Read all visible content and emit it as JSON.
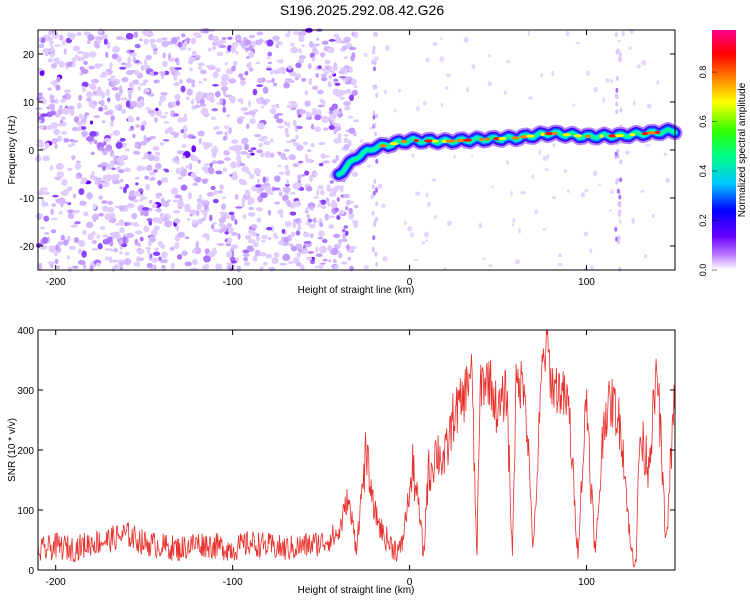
{
  "title": "S196.2025.292.08.42.G26",
  "chart_data": [
    {
      "type": "heatmap",
      "xlabel": "Height of straight line (km)",
      "ylabel": "Frequency (Hz)",
      "xlim": [
        -210,
        150
      ],
      "ylim": [
        -25,
        25
      ],
      "xticks": [
        -200,
        -100,
        0,
        100
      ],
      "yticks": [
        -20,
        -10,
        0,
        10,
        20
      ],
      "ridge": [
        {
          "x": -40,
          "y": -5
        },
        {
          "x": -30,
          "y": -1.5
        },
        {
          "x": -20,
          "y": 0.5
        },
        {
          "x": 0,
          "y": 2
        },
        {
          "x": 20,
          "y": 1.8
        },
        {
          "x": 40,
          "y": 2.2
        },
        {
          "x": 60,
          "y": 2.5
        },
        {
          "x": 80,
          "y": 3.5
        },
        {
          "x": 100,
          "y": 2.8
        },
        {
          "x": 120,
          "y": 3.0
        },
        {
          "x": 150,
          "y": 4.0
        }
      ],
      "colorbar": {
        "label": "Normalized spectral amplitude",
        "ticks": [
          0.0,
          0.2,
          0.4,
          0.6,
          0.8
        ],
        "range": [
          0,
          0.97
        ]
      }
    },
    {
      "type": "line",
      "xlabel": "Height of straight line (km)",
      "ylabel": "SNR (10 * v/v)",
      "xlim": [
        -210,
        150
      ],
      "ylim": [
        0,
        400
      ],
      "xticks": [
        -200,
        -100,
        0,
        100
      ],
      "yticks": [
        0,
        100,
        200,
        300,
        400
      ],
      "series": [
        {
          "name": "SNR",
          "color": "#e8302c",
          "x": [
            -210,
            -200,
            -190,
            -180,
            -170,
            -160,
            -150,
            -140,
            -130,
            -120,
            -110,
            -100,
            -90,
            -80,
            -70,
            -60,
            -50,
            -40,
            -35,
            -30,
            -25,
            -20,
            -15,
            -10,
            -5,
            0,
            2,
            5,
            8,
            10,
            15,
            20,
            25,
            30,
            35,
            38,
            40,
            45,
            50,
            55,
            58,
            60,
            65,
            70,
            75,
            78,
            80,
            85,
            90,
            95,
            100,
            105,
            110,
            115,
            120,
            125,
            128,
            130,
            135,
            140,
            145,
            150
          ],
          "values": [
            30,
            40,
            35,
            45,
            50,
            60,
            45,
            40,
            35,
            45,
            40,
            35,
            45,
            40,
            35,
            40,
            45,
            60,
            120,
            40,
            190,
            100,
            60,
            40,
            30,
            130,
            170,
            110,
            20,
            150,
            200,
            180,
            260,
            280,
            340,
            20,
            310,
            320,
            260,
            300,
            20,
            300,
            320,
            30,
            340,
            380,
            310,
            300,
            270,
            30,
            290,
            20,
            260,
            280,
            230,
            30,
            20,
            220,
            180,
            330,
            40,
            300
          ]
        }
      ]
    }
  ]
}
